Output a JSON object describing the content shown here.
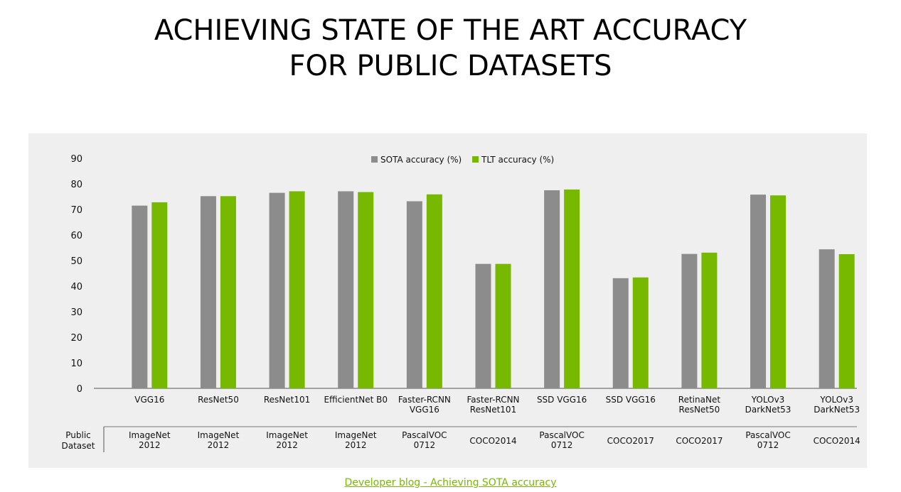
{
  "slide": {
    "title_lines": [
      "ACHIEVING STATE OF THE ART ACCURACY",
      "FOR PUBLIC DATASETS"
    ],
    "footer_link": "Developer blog - Achieving SOTA accuracy"
  },
  "chart_data": {
    "type": "bar",
    "title": "",
    "xlabel": "",
    "ylabel": "",
    "ylim": [
      0,
      90
    ],
    "yticks": [
      0,
      10,
      20,
      30,
      40,
      50,
      60,
      70,
      80,
      90
    ],
    "grid": false,
    "legend_position": "top-center",
    "categories": [
      [
        "VGG16"
      ],
      [
        "ResNet50"
      ],
      [
        "ResNet101"
      ],
      [
        "EfficientNet B0"
      ],
      [
        "Faster-RCNN",
        "VGG16"
      ],
      [
        "Faster-RCNN",
        "ResNet101"
      ],
      [
        "SSD VGG16"
      ],
      [
        "SSD VGG16"
      ],
      [
        "RetinaNet",
        "ResNet50"
      ],
      [
        "YOLOv3",
        "DarkNet53"
      ],
      [
        "YOLOv3",
        "DarkNet53"
      ]
    ],
    "series": [
      {
        "name": "SOTA accuracy (%)",
        "color": "#8c8c8c",
        "values": [
          71.5,
          75.2,
          76.5,
          77.1,
          73.2,
          48.7,
          77.5,
          43.1,
          52.6,
          75.8,
          54.4
        ]
      },
      {
        "name": "TLT accuracy (%)",
        "color": "#76b900",
        "values": [
          72.8,
          75.2,
          77.1,
          76.8,
          75.9,
          48.7,
          77.8,
          43.4,
          53.1,
          75.5,
          52.5
        ]
      }
    ],
    "dataset_row": {
      "label": [
        "Public",
        "Dataset"
      ],
      "values": [
        [
          "ImageNet",
          "2012"
        ],
        [
          "ImageNet",
          "2012"
        ],
        [
          "ImageNet",
          "2012"
        ],
        [
          "ImageNet",
          "2012"
        ],
        [
          "PascalVOC",
          "0712"
        ],
        [
          "COCO2014"
        ],
        [
          "PascalVOC",
          "0712"
        ],
        [
          "COCO2017"
        ],
        [
          "COCO2017"
        ],
        [
          "PascalVOC",
          "0712"
        ],
        [
          "COCO2014"
        ]
      ]
    }
  }
}
